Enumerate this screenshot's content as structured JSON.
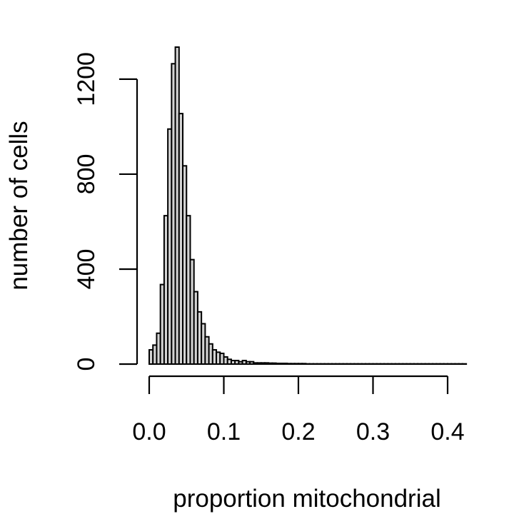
{
  "chart_data": {
    "type": "bar",
    "title": "",
    "xlabel": "proportion mitochondrial",
    "ylabel": "number of cells",
    "xlim": [
      0.0,
      0.425
    ],
    "ylim": [
      0,
      1335
    ],
    "x_ticks": [
      "0.0",
      "0.1",
      "0.2",
      "0.3",
      "0.4"
    ],
    "x_tick_values": [
      0.0,
      0.1,
      0.2,
      0.3,
      0.4
    ],
    "y_ticks": [
      "0",
      "400",
      "800",
      "1200"
    ],
    "y_tick_values": [
      0,
      400,
      800,
      1200
    ],
    "grid": false,
    "legend": "none",
    "bin_width": 0.005,
    "bin_start": 0.0,
    "values": [
      60,
      80,
      130,
      335,
      625,
      990,
      1265,
      1335,
      1055,
      835,
      625,
      440,
      305,
      220,
      170,
      115,
      85,
      60,
      50,
      45,
      30,
      20,
      15,
      15,
      10,
      15,
      10,
      10,
      5,
      5,
      5,
      5,
      4,
      4,
      3,
      3,
      3,
      2,
      2,
      2,
      2,
      2,
      1,
      1,
      1,
      1,
      1,
      1,
      1,
      1,
      1,
      1,
      1,
      1,
      1,
      1,
      1,
      1,
      1,
      1,
      1,
      1,
      1,
      1,
      1,
      1,
      1,
      1,
      1,
      1,
      1,
      1,
      1,
      1,
      1,
      1,
      1,
      1,
      1,
      1,
      1,
      1,
      1,
      1,
      1
    ],
    "colors": {
      "bar_fill": "#d3d3d3",
      "bar_stroke": "#000000",
      "axis": "#000000"
    }
  }
}
